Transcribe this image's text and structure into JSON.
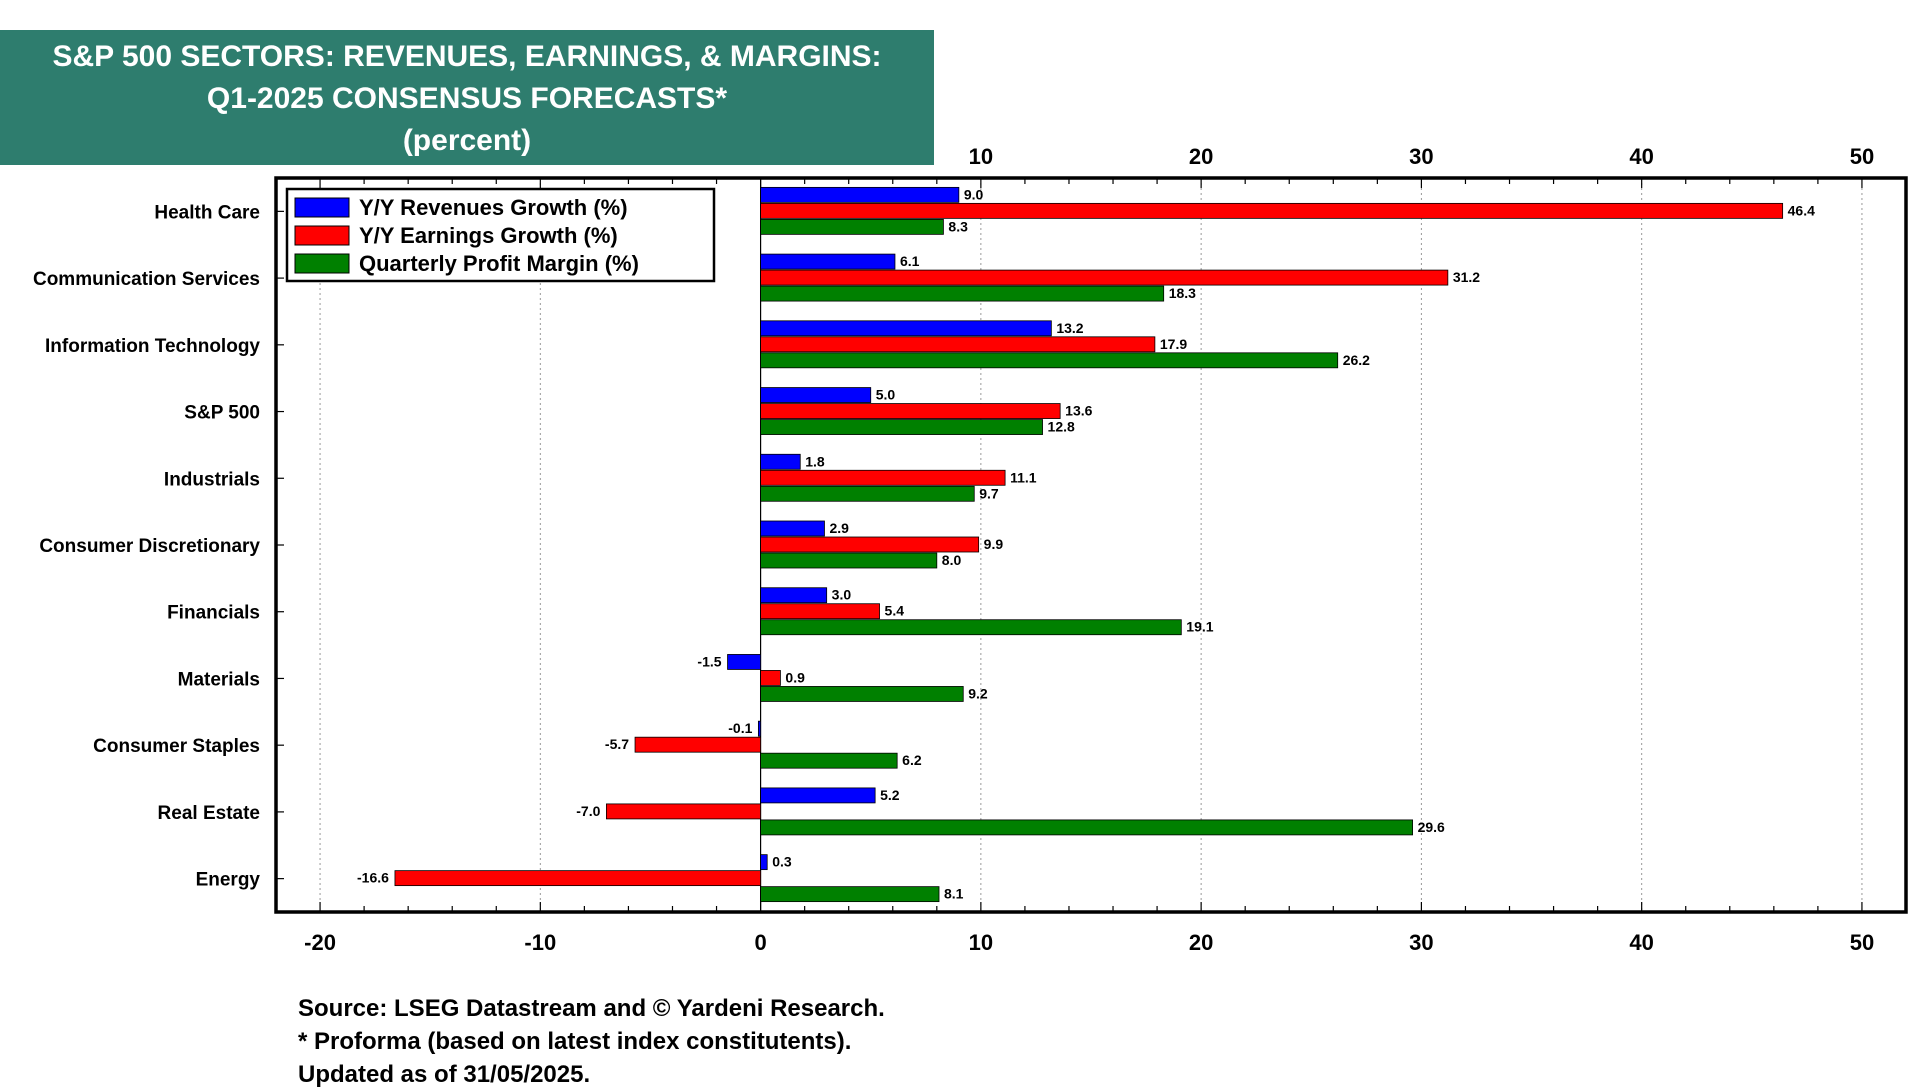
{
  "title": {
    "line1": "S&P 500 SECTORS: REVENUES, EARNINGS, & MARGINS:",
    "line2": "Q1-2025 CONSENSUS FORECASTS*",
    "line3": "(percent)"
  },
  "footnotes": {
    "source": "Source: LSEG Datastream and © Yardeni Research.",
    "proforma": "* Proforma (based on latest index constitutents).",
    "updated": "Updated as of 31/05/2025."
  },
  "colors": {
    "header_bg": "#2e7d6e",
    "revenues": "#0000ff",
    "earnings": "#ff0000",
    "margin": "#008000"
  },
  "chart_data": {
    "type": "bar",
    "orientation": "horizontal",
    "categories": [
      "Health Care",
      "Communication Services",
      "Information Technology",
      "S&P 500",
      "Industrials",
      "Consumer Discretionary",
      "Financials",
      "Materials",
      "Consumer Staples",
      "Real Estate",
      "Energy"
    ],
    "series": [
      {
        "name": "Y/Y Revenues Growth (%)",
        "color": "#0000ff",
        "values": [
          9.0,
          6.1,
          13.2,
          5.0,
          1.8,
          2.9,
          3.0,
          -1.5,
          -0.1,
          5.2,
          0.3
        ]
      },
      {
        "name": "Y/Y Earnings Growth (%)",
        "color": "#ff0000",
        "values": [
          46.4,
          31.2,
          17.9,
          13.6,
          11.1,
          9.9,
          5.4,
          0.9,
          -5.7,
          -7.0,
          -16.6
        ]
      },
      {
        "name": "Quarterly Profit Margin (%)",
        "color": "#008000",
        "values": [
          8.3,
          18.3,
          26.2,
          12.8,
          9.7,
          8.0,
          19.1,
          9.2,
          6.2,
          29.6,
          8.1
        ]
      }
    ],
    "xlim": [
      -22,
      52
    ],
    "bottom_ticks": [
      -20,
      -10,
      0,
      10,
      20,
      30,
      40,
      50
    ],
    "top_ticks": [
      10,
      20,
      30,
      40,
      50
    ],
    "grid": "vertical dotted",
    "legend": "top-left"
  }
}
